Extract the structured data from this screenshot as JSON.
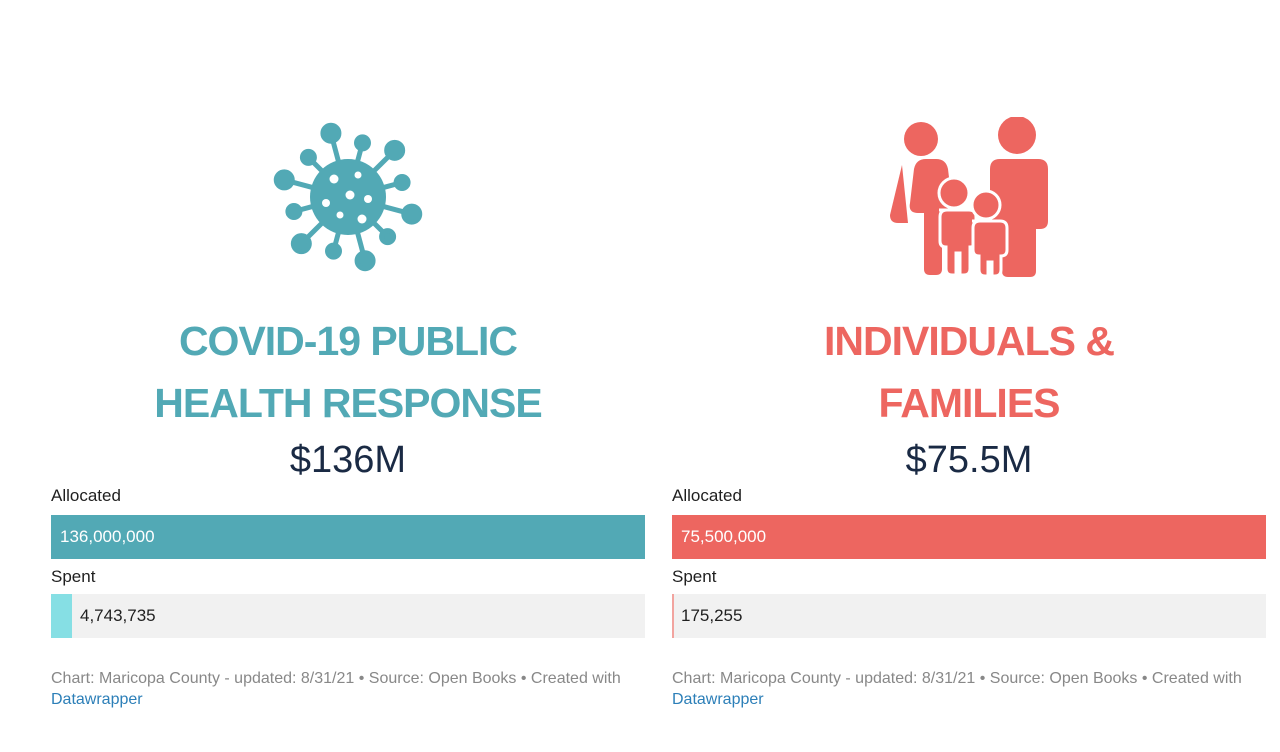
{
  "chart_data": [
    {
      "type": "bar",
      "title": "COVID-19 PUBLIC HEALTH RESPONSE",
      "amount_label": "$136M",
      "categories": [
        "Allocated",
        "Spent"
      ],
      "values": [
        136000000,
        4743735
      ],
      "value_labels": [
        "136,000,000",
        "4,743,735"
      ],
      "xlim": [
        0,
        136000000
      ],
      "icon": "virus-icon",
      "colors": {
        "accent": "#52a9b5",
        "allocated": "#52a9b5",
        "spent": "#86dfe4",
        "track": "#f1f1f1"
      },
      "footer": {
        "text": "Chart: Maricopa County - updated: 8/31/21 • Source: Open Books • Created with",
        "link": "Datawrapper"
      }
    },
    {
      "type": "bar",
      "title": "INDIVIDUALS & FAMILIES",
      "amount_label": "$75.5M",
      "categories": [
        "Allocated",
        "Spent"
      ],
      "values": [
        75500000,
        175255
      ],
      "value_labels": [
        "75,500,000",
        "175,255"
      ],
      "xlim": [
        0,
        75500000
      ],
      "icon": "family-icon",
      "colors": {
        "accent": "#ed6660",
        "allocated": "#ed6660",
        "spent": "#f2a49f",
        "track": "#f1f1f1"
      },
      "footer": {
        "text": "Chart: Maricopa County - updated: 8/31/21 • Source: Open Books • Created with",
        "link": "Datawrapper"
      }
    }
  ]
}
